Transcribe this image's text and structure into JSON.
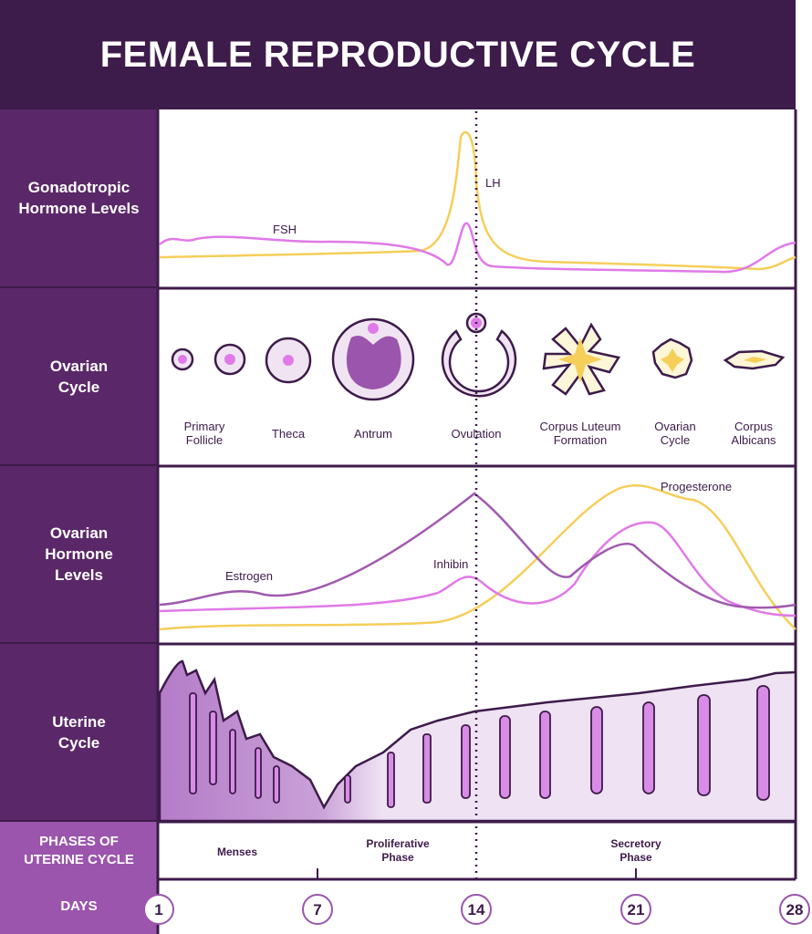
{
  "title": "FEMALE REPRODUCTIVE CYCLE",
  "rows": {
    "gonadotropic": "Gonadotropic Hormone Levels",
    "ovarian_cycle": "Ovarian Cycle",
    "ovarian_hormone": "Ovarian Hormone Levels",
    "uterine": "Uterine Cycle",
    "phases": "PHASES OF UTERINE CYCLE",
    "days": "DAYS"
  },
  "gonadotropic_labels": {
    "fsh": "FSH",
    "lh": "LH"
  },
  "ovarian_stages": {
    "primary_1": "Primary",
    "primary_2": "Follicle",
    "theca": "Theca",
    "antrum": "Antrum",
    "ovulation": "Ovulation",
    "corpus_luteum_1": "Corpus Luteum",
    "corpus_luteum_2": "Formation",
    "ovarian_cycle_1": "Ovarian",
    "ovarian_cycle_2": "Cycle",
    "albicans_1": "Corpus",
    "albicans_2": "Albicans"
  },
  "ovarian_hormone_labels": {
    "estrogen": "Estrogen",
    "inhibin": "Inhibin",
    "progesterone": "Progesterone"
  },
  "phases": {
    "menses": "Menses",
    "proliferative_1": "Proliferative",
    "proliferative_2": "Phase",
    "secretory_1": "Secretory",
    "secretory_2": "Phase"
  },
  "days": [
    "1",
    "7",
    "14",
    "21",
    "28"
  ],
  "colors": {
    "dark": "#3d1b4a",
    "side": "#5a2868",
    "light": "#9b55ad",
    "pink": "#e07ae8",
    "yellow": "#f5cf5a",
    "purple": "#a05aae"
  }
}
